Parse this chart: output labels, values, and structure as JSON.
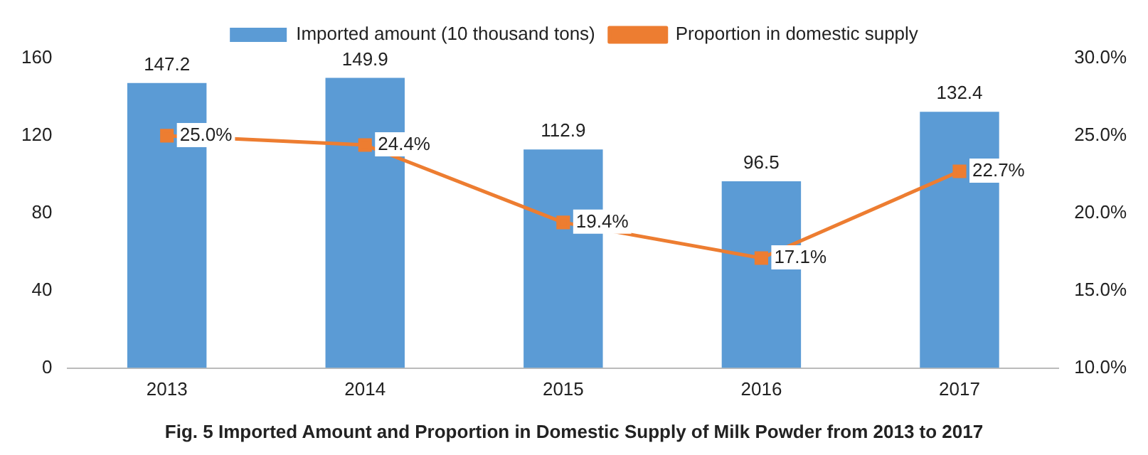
{
  "chart_data": {
    "type": "bar",
    "title": "Fig. 5 Imported Amount and Proportion in Domestic Supply of Milk Powder from 2013 to 2017",
    "categories": [
      "2013",
      "2014",
      "2015",
      "2016",
      "2017"
    ],
    "series": [
      {
        "name": "Imported amount (10 thousand tons)",
        "color": "#5b9bd5",
        "values": [
          147.2,
          149.9,
          112.9,
          96.5,
          132.4
        ],
        "value_labels": [
          "147.2",
          "149.9",
          "112.9",
          "96.5",
          "132.4"
        ]
      },
      {
        "name": "Proportion in domestic supply",
        "type": "line",
        "axis": "y2",
        "color": "#ed7d31",
        "marker": "square",
        "values": [
          25.0,
          24.4,
          19.4,
          17.1,
          22.7
        ],
        "value_labels": [
          "25.0%",
          "24.4%",
          "19.4%",
          "17.1%",
          "22.7%"
        ]
      }
    ],
    "ylim": [
      0,
      160
    ],
    "yticks": [
      0,
      40,
      80,
      120,
      160
    ],
    "y2lim": [
      10,
      30
    ],
    "y2ticks": [
      {
        "value": 10,
        "label": "10.0%"
      },
      {
        "value": 15,
        "label": "15.0%"
      },
      {
        "value": 20,
        "label": "20.0%"
      },
      {
        "value": 25,
        "label": "25.0%"
      },
      {
        "value": 30,
        "label": "30.0%"
      }
    ],
    "grid": false,
    "legend": "top"
  }
}
